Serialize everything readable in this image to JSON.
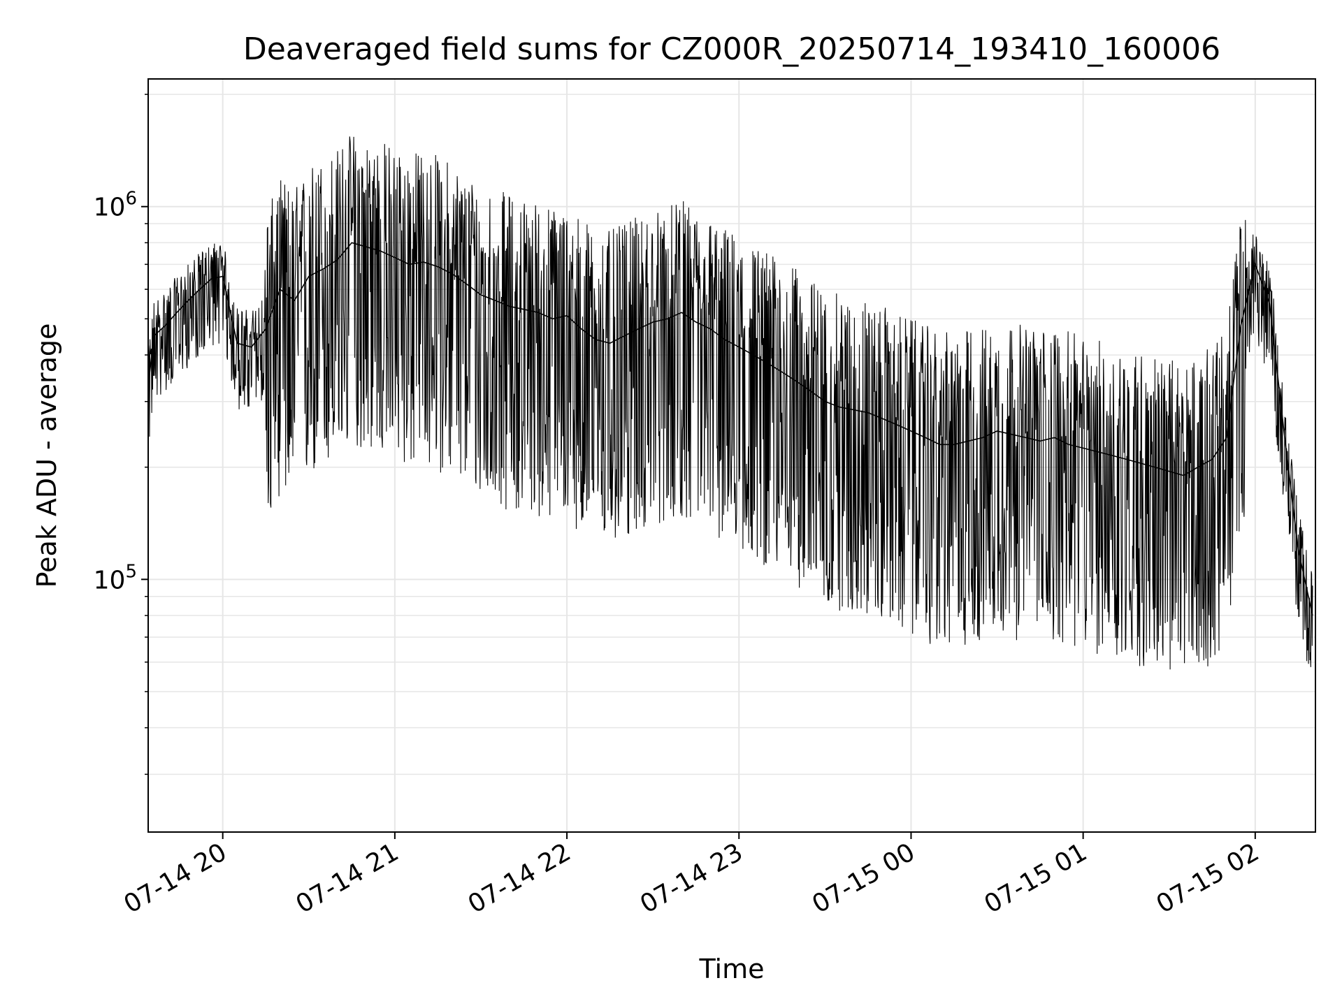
{
  "chart_data": {
    "type": "line",
    "title": "Deaveraged field sums for CZ000R_20250714_193410_160006",
    "xlabel": "Time",
    "ylabel": "Peak ADU - average",
    "y_scale": "log",
    "ylim": [
      21000,
      2200000
    ],
    "xlim": [
      "2025-07-14 19:34",
      "2025-07-15 02:21"
    ],
    "x_ticks": [
      {
        "value": "2025-07-14 20:00",
        "label": "07-14 20"
      },
      {
        "value": "2025-07-14 21:00",
        "label": "07-14 21"
      },
      {
        "value": "2025-07-14 22:00",
        "label": "07-14 22"
      },
      {
        "value": "2025-07-14 23:00",
        "label": "07-14 23"
      },
      {
        "value": "2025-07-15 00:00",
        "label": "07-15 00"
      },
      {
        "value": "2025-07-15 01:00",
        "label": "07-15 01"
      },
      {
        "value": "2025-07-15 02:00",
        "label": "07-15 02"
      }
    ],
    "y_ticks": [
      {
        "value": 100000,
        "base": "10",
        "exp": "5"
      },
      {
        "value": 1000000,
        "base": "10",
        "exp": "6"
      }
    ],
    "grid": true,
    "line_color": "#000000",
    "series": [
      {
        "x": [
          "2025-07-14 19:34",
          "2025-07-14 19:36",
          "2025-07-14 19:40",
          "2025-07-14 19:44",
          "2025-07-14 19:48",
          "2025-07-14 19:52",
          "2025-07-14 19:56",
          "2025-07-14 20:00",
          "2025-07-14 20:05",
          "2025-07-14 20:10",
          "2025-07-14 20:15",
          "2025-07-14 20:20",
          "2025-07-14 20:25",
          "2025-07-14 20:30",
          "2025-07-14 20:35",
          "2025-07-14 20:40",
          "2025-07-14 20:45",
          "2025-07-14 20:50",
          "2025-07-14 20:55",
          "2025-07-14 21:00",
          "2025-07-14 21:05",
          "2025-07-14 21:10",
          "2025-07-14 21:15",
          "2025-07-14 21:20",
          "2025-07-14 21:25",
          "2025-07-14 21:30",
          "2025-07-14 21:35",
          "2025-07-14 21:40",
          "2025-07-14 21:45",
          "2025-07-14 21:50",
          "2025-07-14 21:55",
          "2025-07-14 22:00",
          "2025-07-14 22:05",
          "2025-07-14 22:10",
          "2025-07-14 22:15",
          "2025-07-14 22:20",
          "2025-07-14 22:25",
          "2025-07-14 22:30",
          "2025-07-14 22:35",
          "2025-07-14 22:40",
          "2025-07-14 22:45",
          "2025-07-14 22:50",
          "2025-07-14 22:55",
          "2025-07-14 23:00",
          "2025-07-14 23:05",
          "2025-07-14 23:10",
          "2025-07-14 23:15",
          "2025-07-14 23:20",
          "2025-07-14 23:25",
          "2025-07-14 23:30",
          "2025-07-14 23:35",
          "2025-07-14 23:40",
          "2025-07-14 23:45",
          "2025-07-14 23:50",
          "2025-07-14 23:55",
          "2025-07-15 00:00",
          "2025-07-15 00:05",
          "2025-07-15 00:10",
          "2025-07-15 00:15",
          "2025-07-15 00:20",
          "2025-07-15 00:25",
          "2025-07-15 00:30",
          "2025-07-15 00:35",
          "2025-07-15 00:40",
          "2025-07-15 00:45",
          "2025-07-15 00:50",
          "2025-07-15 00:55",
          "2025-07-15 01:00",
          "2025-07-15 01:05",
          "2025-07-15 01:10",
          "2025-07-15 01:15",
          "2025-07-15 01:20",
          "2025-07-15 01:25",
          "2025-07-15 01:30",
          "2025-07-15 01:35",
          "2025-07-15 01:40",
          "2025-07-15 01:45",
          "2025-07-15 01:50",
          "2025-07-15 01:55",
          "2025-07-15 02:00",
          "2025-07-15 02:05",
          "2025-07-15 02:10",
          "2025-07-15 02:15",
          "2025-07-15 02:20"
        ],
        "y": [
          330000,
          450000,
          480000,
          520000,
          560000,
          600000,
          640000,
          650000,
          430000,
          420000,
          470000,
          600000,
          560000,
          650000,
          680000,
          720000,
          800000,
          780000,
          760000,
          730000,
          700000,
          710000,
          690000,
          660000,
          620000,
          580000,
          560000,
          540000,
          530000,
          520000,
          500000,
          510000,
          470000,
          440000,
          430000,
          450000,
          470000,
          490000,
          500000,
          520000,
          490000,
          470000,
          440000,
          420000,
          400000,
          380000,
          360000,
          340000,
          320000,
          300000,
          290000,
          285000,
          280000,
          270000,
          260000,
          250000,
          240000,
          230000,
          230000,
          235000,
          240000,
          250000,
          245000,
          240000,
          235000,
          240000,
          230000,
          225000,
          220000,
          215000,
          210000,
          205000,
          200000,
          195000,
          190000,
          200000,
          210000,
          240000,
          480000,
          700000,
          550000,
          250000,
          120000,
          80000
        ]
      }
    ]
  }
}
